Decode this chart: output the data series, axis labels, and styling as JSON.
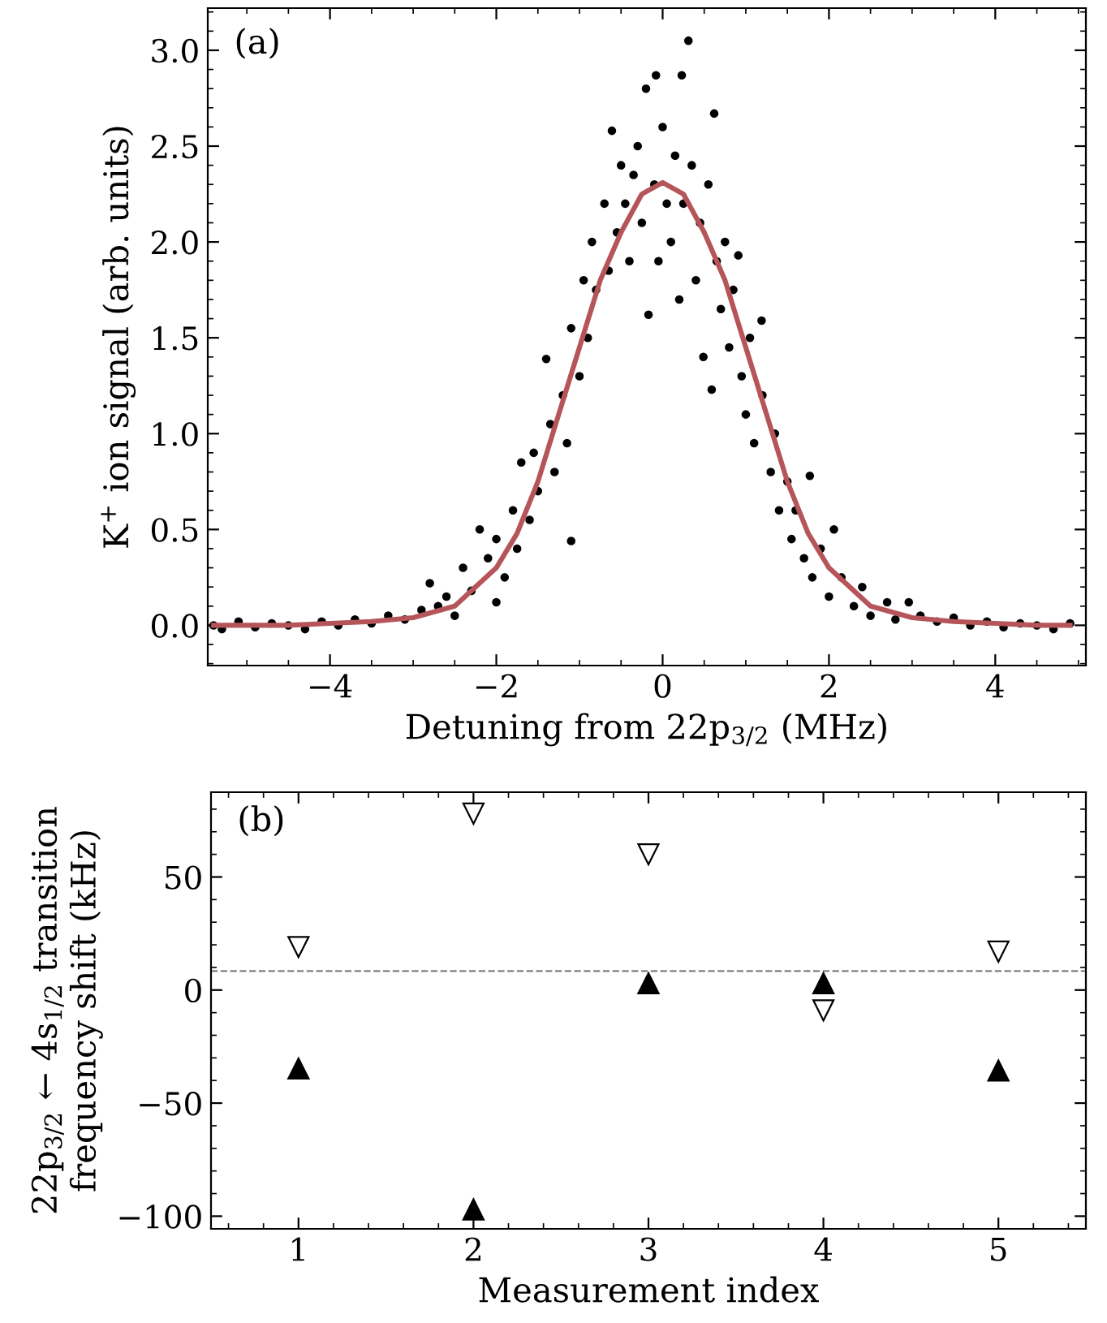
{
  "chart_data": [
    {
      "type": "scatter",
      "ylabel": "K$^{+}$ ion signal (arb. units)",
      "xlabel": "Detuning from 22p$_{3/2}$ (MHz)",
      "annotations": [
        "(a)"
      ],
      "xlim": [
        -5.47,
        5.09
      ],
      "ylim": [
        -0.21,
        3.22
      ],
      "xticks": [
        {
          "value": -4,
          "label": "−4"
        },
        {
          "value": -2,
          "label": "−2"
        },
        0,
        2,
        4
      ],
      "yticks": [
        {
          "value": 0,
          "label": "0.0"
        },
        0.5,
        {
          "value": 1,
          "label": "1.0"
        },
        1.5,
        {
          "value": 2,
          "label": "2.0"
        },
        2.5,
        {
          "value": 3,
          "label": "3.0"
        }
      ],
      "series": [
        {
          "color": "#000000",
          "marker": "circle",
          "x": [
            -5.4,
            -5.3,
            -5.1,
            -4.9,
            -4.7,
            -4.5,
            -4.3,
            -4.1,
            -3.9,
            -3.7,
            -3.5,
            -3.3,
            -3.1,
            -2.9,
            -2.8,
            -2.7,
            -2.6,
            -2.5,
            -2.4,
            -2.3,
            -2.2,
            -2.1,
            -2.0,
            -2.0,
            -1.9,
            -1.8,
            -1.75,
            -1.7,
            -1.6,
            -1.55,
            -1.5,
            -1.4,
            -1.35,
            -1.3,
            -1.2,
            -1.15,
            -1.1,
            -1.1,
            -1.0,
            -0.95,
            -0.9,
            -0.85,
            -0.8,
            -0.7,
            -0.65,
            -0.61,
            -0.55,
            -0.5,
            -0.45,
            -0.4,
            -0.35,
            -0.3,
            -0.25,
            -0.2,
            -0.17,
            -0.1,
            -0.08,
            -0.05,
            0.0,
            0.05,
            0.1,
            0.15,
            0.2,
            0.23,
            0.25,
            0.31,
            0.35,
            0.4,
            0.45,
            0.49,
            0.55,
            0.59,
            0.62,
            0.65,
            0.7,
            0.75,
            0.8,
            0.85,
            0.91,
            0.95,
            1.0,
            1.05,
            1.1,
            1.19,
            1.2,
            1.3,
            1.35,
            1.4,
            1.5,
            1.55,
            1.6,
            1.7,
            1.77,
            1.8,
            1.9,
            2.0,
            2.06,
            2.15,
            2.3,
            2.4,
            2.5,
            2.7,
            2.8,
            2.96,
            3.1,
            3.3,
            3.5,
            3.7,
            3.9,
            4.1,
            4.3,
            4.5,
            4.7,
            4.9
          ],
          "values": [
            0.0,
            -0.02,
            0.02,
            -0.01,
            0.01,
            0.0,
            -0.02,
            0.02,
            0.0,
            0.03,
            0.01,
            0.05,
            0.03,
            0.08,
            0.22,
            0.1,
            0.15,
            0.05,
            0.3,
            0.18,
            0.5,
            0.35,
            0.12,
            0.45,
            0.25,
            0.6,
            0.4,
            0.85,
            0.55,
            0.9,
            0.7,
            1.39,
            1.05,
            0.8,
            1.2,
            0.95,
            0.44,
            1.55,
            1.3,
            1.8,
            1.5,
            2.0,
            1.75,
            2.2,
            1.85,
            2.58,
            2.05,
            2.4,
            2.2,
            1.9,
            2.35,
            2.5,
            2.1,
            2.8,
            1.62,
            2.3,
            2.87,
            1.9,
            2.6,
            2.2,
            2.0,
            2.45,
            1.7,
            2.87,
            2.2,
            3.05,
            2.4,
            1.8,
            2.1,
            1.4,
            2.3,
            1.23,
            2.67,
            1.9,
            1.65,
            2.0,
            1.45,
            1.75,
            1.93,
            1.3,
            1.1,
            1.5,
            0.95,
            1.59,
            1.2,
            0.8,
            1.0,
            0.6,
            0.75,
            0.45,
            0.6,
            0.35,
            0.78,
            0.25,
            0.4,
            0.15,
            0.5,
            0.25,
            0.1,
            0.2,
            0.05,
            0.12,
            0.03,
            0.12,
            0.05,
            0.02,
            0.04,
            0.0,
            0.02,
            -0.01,
            0.01,
            0.0,
            -0.02,
            0.01
          ]
        },
        {
          "type": "line",
          "color": "#b5555a",
          "marker": "none",
          "x": [
            -5.4,
            -4.5,
            -4,
            -3.5,
            -3,
            -2.5,
            -2,
            -1.75,
            -1.5,
            -1.25,
            -1,
            -0.75,
            -0.5,
            -0.25,
            0,
            0.25,
            0.5,
            0.75,
            1,
            1.25,
            1.5,
            1.75,
            2,
            2.5,
            3,
            3.5,
            4,
            4.5,
            4.9
          ],
          "values": [
            0.0,
            0.0,
            0.01,
            0.02,
            0.04,
            0.1,
            0.3,
            0.48,
            0.75,
            1.1,
            1.45,
            1.8,
            2.05,
            2.25,
            2.31,
            2.25,
            2.05,
            1.8,
            1.45,
            1.1,
            0.75,
            0.48,
            0.3,
            0.1,
            0.04,
            0.02,
            0.01,
            0.0,
            0.0
          ]
        }
      ]
    },
    {
      "type": "scatter",
      "ylabel": "22p$_{3/2}$ ← 4s$_{1/2}$ transition\nfrequency shift (kHz)",
      "xlabel": "Measurement index",
      "annotations": [
        "(b)"
      ],
      "xlim": [
        0.5,
        5.5
      ],
      "ylim": [
        -105.6,
        87.5
      ],
      "xticks": [
        1,
        2,
        3,
        4,
        5
      ],
      "yticks": [
        {
          "value": -100,
          "label": "−100"
        },
        {
          "value": -50,
          "label": "−50"
        },
        0,
        50
      ],
      "ref_lines": [
        {
          "axis": "y",
          "value": 8.4,
          "color": "#808080",
          "line_style": "dashed"
        }
      ],
      "series": [
        {
          "color": "#000000",
          "marker": "triangle",
          "x": [
            1,
            2,
            3,
            4,
            5
          ],
          "values": [
            -34.7,
            -97,
            3,
            3,
            -35.6
          ]
        },
        {
          "color": "#000000",
          "marker": "triangle",
          "x": [
            1,
            2,
            3,
            4,
            5
          ],
          "values": [
            19,
            78,
            60,
            -9,
            17
          ]
        }
      ]
    }
  ]
}
